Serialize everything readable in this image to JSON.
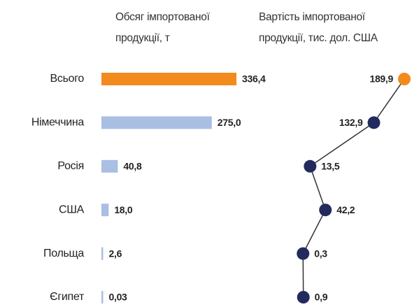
{
  "chart_data": {
    "type": "bar",
    "categories": [
      "Всього",
      "Німеччина",
      "Росія",
      "США",
      "Польща",
      "Єгипет"
    ],
    "series": [
      {
        "name": "Обсяг імпортованої продукції, т",
        "type": "bar",
        "colors": [
          "#f28a1e",
          "#a9bfe3",
          "#a9bfe3",
          "#a9bfe3",
          "#a9bfe3",
          "#a9bfe3"
        ],
        "values": [
          336.4,
          275.0,
          40.8,
          18.0,
          2.6,
          0.03
        ],
        "value_labels": [
          "336,4",
          "275,0",
          "40,8",
          "18,0",
          "2,6",
          "0,03"
        ]
      },
      {
        "name": "Вартість імпортованої продукції, тис. дол. США",
        "type": "line",
        "color": "#333333",
        "colors": [
          "#f28a1e",
          "#232a5e",
          "#232a5e",
          "#232a5e",
          "#232a5e",
          "#232a5e"
        ],
        "values": [
          189.9,
          132.9,
          13.5,
          42.2,
          0.3,
          0.9
        ],
        "value_labels": [
          "189,9",
          "132,9",
          "13,5",
          "42,2",
          "0,3",
          "0,9"
        ]
      }
    ]
  }
}
